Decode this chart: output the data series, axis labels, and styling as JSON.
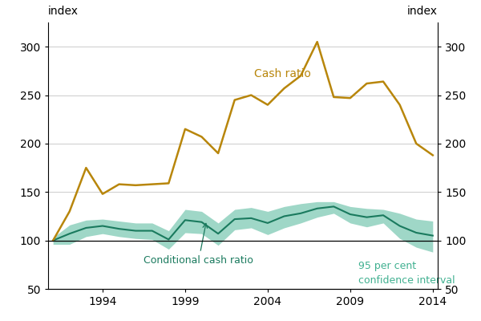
{
  "years": [
    1991,
    1992,
    1993,
    1994,
    1995,
    1996,
    1997,
    1998,
    1999,
    2000,
    2001,
    2002,
    2003,
    2004,
    2005,
    2006,
    2007,
    2008,
    2009,
    2010,
    2011,
    2012,
    2013,
    2014
  ],
  "cash_ratio": [
    100,
    130,
    175,
    148,
    158,
    157,
    158,
    159,
    215,
    207,
    190,
    245,
    250,
    240,
    257,
    270,
    305,
    248,
    247,
    262,
    264,
    240,
    200,
    188
  ],
  "cond_cash_ratio": [
    100,
    107,
    113,
    115,
    112,
    110,
    110,
    101,
    121,
    119,
    107,
    122,
    123,
    118,
    125,
    128,
    133,
    135,
    127,
    124,
    126,
    115,
    108,
    105
  ],
  "ci_upper": [
    103,
    116,
    121,
    122,
    120,
    118,
    118,
    110,
    132,
    130,
    118,
    132,
    134,
    130,
    135,
    138,
    140,
    140,
    135,
    133,
    132,
    128,
    122,
    120
  ],
  "ci_lower": [
    96,
    96,
    104,
    107,
    104,
    102,
    101,
    91,
    108,
    107,
    95,
    111,
    113,
    106,
    113,
    118,
    124,
    128,
    118,
    114,
    118,
    102,
    93,
    88
  ],
  "ylim": [
    50,
    325
  ],
  "yticks": [
    50,
    100,
    150,
    200,
    250,
    300
  ],
  "cash_ratio_color": "#b8860b",
  "cond_color": "#1a7a5e",
  "ci_fill_color": "#40b090",
  "ci_fill_alpha": 0.5,
  "bg_color": "#ffffff",
  "grid_color": "#cccccc",
  "ylabel_left": "index",
  "ylabel_right": "index",
  "annotation_text": "Conditional cash ratio",
  "ci_label": "95 per cent\nconfidence interval",
  "cash_ratio_label": "Cash ratio",
  "xtick_years": [
    1994,
    1999,
    2004,
    2009,
    2014
  ]
}
